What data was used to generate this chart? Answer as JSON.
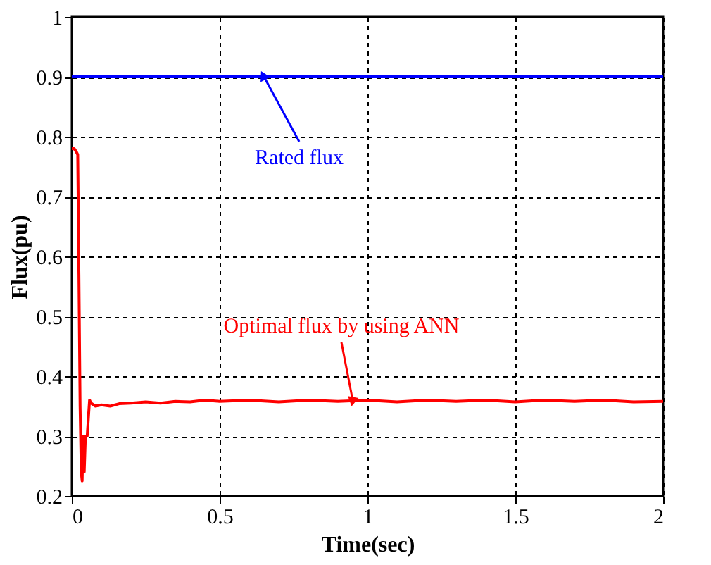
{
  "chart_data": {
    "type": "line",
    "xlabel": "Time(sec)",
    "ylabel": "Flux(pu)",
    "xlim": [
      0,
      2
    ],
    "ylim": [
      0.2,
      1
    ],
    "xticks": [
      {
        "value": 0,
        "label": "0"
      },
      0.5,
      {
        "value": 1,
        "label": "1"
      },
      1.5,
      {
        "value": 2,
        "label": "2"
      }
    ],
    "yticks": [
      0.2,
      0.3,
      0.4,
      0.5,
      0.6,
      0.7,
      0.8,
      0.9,
      {
        "value": 1,
        "label": "1"
      }
    ],
    "grid": true,
    "line_style": "solid",
    "series": [
      {
        "color": "#0000ff",
        "x": [
          0,
          2
        ],
        "values": [
          0.9,
          0.9
        ]
      },
      {
        "color": "#ff0000",
        "x": [
          0,
          0.008,
          0.015,
          0.02,
          0.024,
          0.028,
          0.032,
          0.035,
          0.038,
          0.042,
          0.046,
          0.052,
          0.056,
          0.06,
          0.065,
          0.08,
          0.1,
          0.13,
          0.16,
          0.2,
          0.25,
          0.3,
          0.35,
          0.4,
          0.45,
          0.5,
          0.6,
          0.7,
          0.8,
          0.9,
          1.0,
          1.1,
          1.2,
          1.3,
          1.4,
          1.5,
          1.6,
          1.7,
          1.8,
          1.9,
          2.0
        ],
        "values": [
          0.78,
          0.78,
          0.775,
          0.77,
          0.57,
          0.35,
          0.24,
          0.225,
          0.3,
          0.24,
          0.3,
          0.3,
          0.33,
          0.36,
          0.355,
          0.35,
          0.352,
          0.35,
          0.354,
          0.355,
          0.357,
          0.355,
          0.358,
          0.357,
          0.36,
          0.358,
          0.36,
          0.357,
          0.36,
          0.358,
          0.36,
          0.357,
          0.36,
          0.358,
          0.36,
          0.357,
          0.36,
          0.358,
          0.36,
          0.357,
          0.358
        ]
      }
    ],
    "annotations": [
      {
        "text": "Rated flux",
        "x": 0.65,
        "y": 0.9
      },
      {
        "text": "Optimal flux by using ANN",
        "x": 0.95,
        "y": 0.36
      }
    ]
  }
}
